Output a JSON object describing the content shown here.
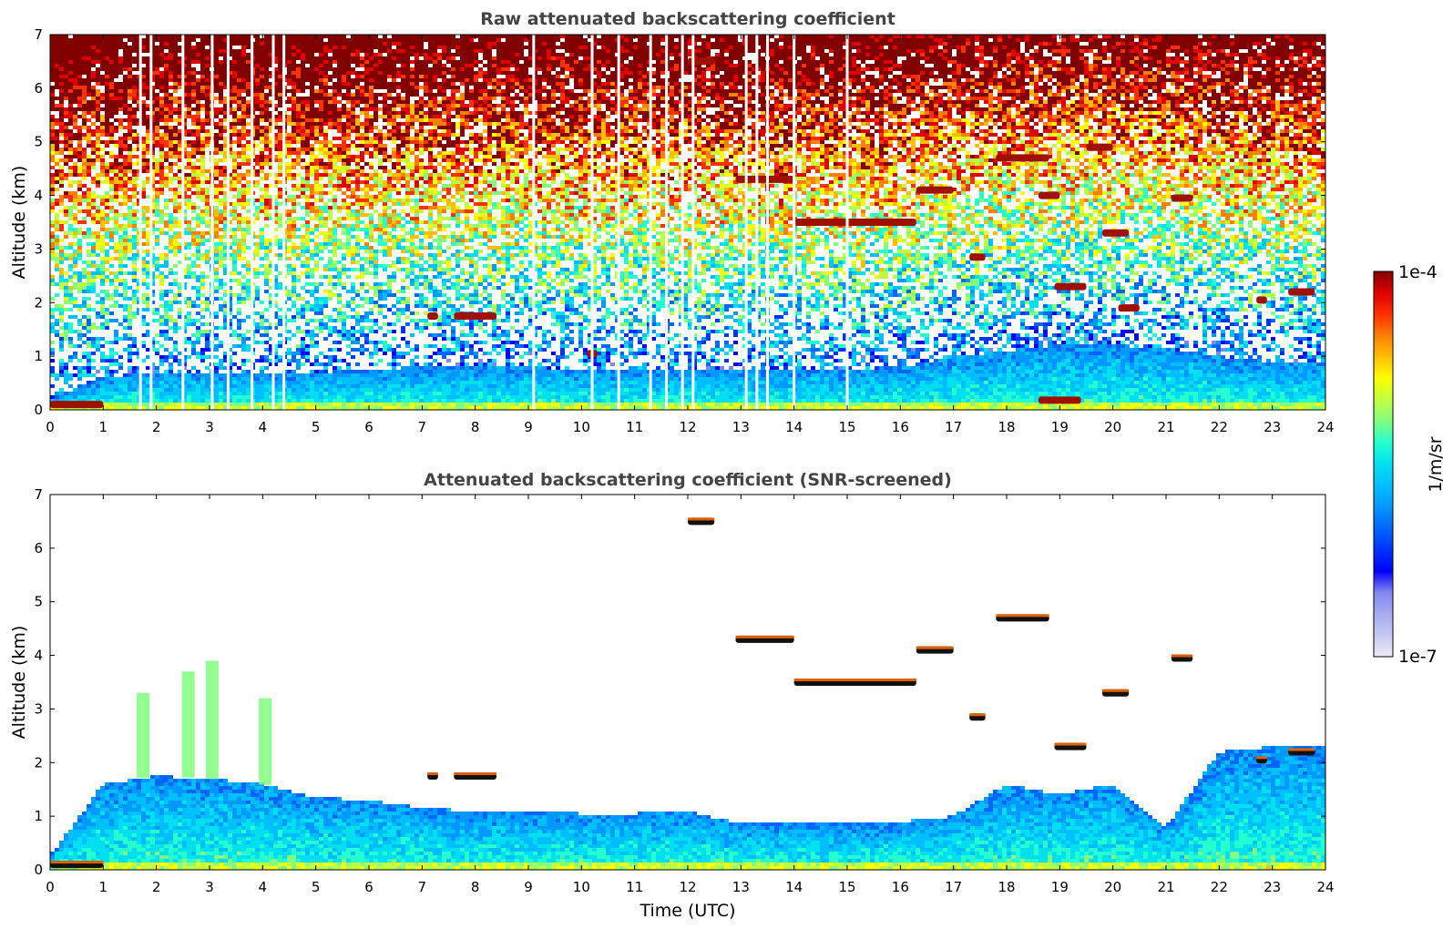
{
  "chart_data": [
    {
      "type": "heatmap",
      "title": "Raw attenuated backscattering coefficient",
      "xlabel": "",
      "ylabel": "Altitude (km)",
      "xlim": [
        0,
        24
      ],
      "ylim": [
        0,
        7
      ],
      "xticks": [
        "0",
        "1",
        "2",
        "3",
        "4",
        "5",
        "6",
        "7",
        "8",
        "9",
        "10",
        "11",
        "12",
        "13",
        "14",
        "15",
        "16",
        "17",
        "18",
        "19",
        "20",
        "21",
        "22",
        "23",
        "24"
      ],
      "yticks": [
        "0",
        "1",
        "2",
        "3",
        "4",
        "5",
        "6",
        "7"
      ],
      "boundary_layer_top_km": [
        0.2,
        0.6,
        0.7,
        0.7,
        0.7,
        0.7,
        0.75,
        0.8,
        0.8,
        0.8,
        0.75,
        0.75,
        0.75,
        0.75,
        0.75,
        0.75,
        0.8,
        1.0,
        1.1,
        1.2,
        1.2,
        1.15,
        1.0,
        0.9,
        0.9
      ],
      "cloud_layers": [
        {
          "x_start": 0.0,
          "x_end": 1.0,
          "alt_km": 0.1
        },
        {
          "x_start": 7.1,
          "x_end": 7.3,
          "alt_km": 1.75
        },
        {
          "x_start": 7.6,
          "x_end": 8.4,
          "alt_km": 1.75
        },
        {
          "x_start": 10.1,
          "x_end": 10.3,
          "alt_km": 1.05
        },
        {
          "x_start": 12.0,
          "x_end": 12.5,
          "alt_km": 6.5
        },
        {
          "x_start": 12.9,
          "x_end": 14.0,
          "alt_km": 4.3
        },
        {
          "x_start": 14.0,
          "x_end": 16.3,
          "alt_km": 3.5
        },
        {
          "x_start": 16.3,
          "x_end": 17.0,
          "alt_km": 4.1
        },
        {
          "x_start": 17.3,
          "x_end": 17.6,
          "alt_km": 2.85
        },
        {
          "x_start": 17.8,
          "x_end": 18.8,
          "alt_km": 4.7
        },
        {
          "x_start": 18.6,
          "x_end": 19.0,
          "alt_km": 4.0
        },
        {
          "x_start": 18.6,
          "x_end": 19.4,
          "alt_km": 0.18
        },
        {
          "x_start": 18.9,
          "x_end": 19.5,
          "alt_km": 2.3
        },
        {
          "x_start": 19.5,
          "x_end": 20.0,
          "alt_km": 4.9
        },
        {
          "x_start": 19.8,
          "x_end": 20.3,
          "alt_km": 3.3
        },
        {
          "x_start": 20.1,
          "x_end": 20.5,
          "alt_km": 1.9
        },
        {
          "x_start": 21.1,
          "x_end": 21.5,
          "alt_km": 3.95
        },
        {
          "x_start": 22.7,
          "x_end": 22.9,
          "alt_km": 2.05
        },
        {
          "x_start": 23.3,
          "x_end": 23.8,
          "alt_km": 2.2
        }
      ],
      "missing_profiles_utc": [
        1.7,
        1.9,
        2.5,
        3.05,
        3.35,
        3.8,
        4.2,
        4.4,
        9.1,
        10.2,
        10.7,
        11.3,
        11.6,
        11.9,
        12.1,
        13.1,
        13.3,
        13.5,
        14.0,
        15.0
      ]
    },
    {
      "type": "heatmap",
      "title": "Attenuated backscattering coefficient (SNR-screened)",
      "xlabel": "Time (UTC)",
      "ylabel": "Altitude (km)",
      "xlim": [
        0,
        24
      ],
      "ylim": [
        0,
        7
      ],
      "xticks": [
        "0",
        "1",
        "2",
        "3",
        "4",
        "5",
        "6",
        "7",
        "8",
        "9",
        "10",
        "11",
        "12",
        "13",
        "14",
        "15",
        "16",
        "17",
        "18",
        "19",
        "20",
        "21",
        "22",
        "23",
        "24"
      ],
      "yticks": [
        "0",
        "1",
        "2",
        "3",
        "4",
        "5",
        "6",
        "7"
      ],
      "boundary_layer_top_km": [
        0.25,
        1.6,
        1.75,
        1.7,
        1.6,
        1.35,
        1.3,
        1.15,
        1.1,
        1.1,
        1.05,
        1.05,
        1.1,
        0.85,
        0.85,
        0.85,
        0.9,
        1.0,
        1.6,
        1.4,
        1.6,
        0.8,
        2.2,
        2.3,
        2.3
      ],
      "cloud_layers": [
        {
          "x_start": 0.0,
          "x_end": 1.0,
          "alt_km": 0.1
        },
        {
          "x_start": 7.1,
          "x_end": 7.3,
          "alt_km": 1.75
        },
        {
          "x_start": 7.6,
          "x_end": 8.4,
          "alt_km": 1.75
        },
        {
          "x_start": 12.0,
          "x_end": 12.5,
          "alt_km": 6.5
        },
        {
          "x_start": 12.9,
          "x_end": 14.0,
          "alt_km": 4.3
        },
        {
          "x_start": 14.0,
          "x_end": 16.3,
          "alt_km": 3.5
        },
        {
          "x_start": 16.3,
          "x_end": 17.0,
          "alt_km": 4.1
        },
        {
          "x_start": 17.3,
          "x_end": 17.6,
          "alt_km": 2.85
        },
        {
          "x_start": 17.8,
          "x_end": 18.8,
          "alt_km": 4.7
        },
        {
          "x_start": 18.9,
          "x_end": 19.5,
          "alt_km": 2.3
        },
        {
          "x_start": 19.8,
          "x_end": 20.3,
          "alt_km": 3.3
        },
        {
          "x_start": 21.1,
          "x_end": 21.5,
          "alt_km": 3.95
        },
        {
          "x_start": 22.7,
          "x_end": 22.9,
          "alt_km": 2.05
        },
        {
          "x_start": 23.3,
          "x_end": 23.8,
          "alt_km": 2.2
        }
      ],
      "aerosol_plumes": [
        {
          "x_center": 1.75,
          "top_km": 3.3
        },
        {
          "x_center": 2.6,
          "top_km": 3.7
        },
        {
          "x_center": 3.05,
          "top_km": 3.9
        },
        {
          "x_center": 4.05,
          "top_km": 3.2
        }
      ]
    }
  ],
  "colorbar": {
    "label": "1/m/sr",
    "max_label": "1e-4",
    "min_label": "1e-7",
    "min": 1e-07,
    "max": 0.0001,
    "scale": "log",
    "colors": [
      "#ececf7",
      "#c5c8f0",
      "#a9aaf0",
      "#8286ef",
      "#0000ff",
      "#0033ff",
      "#0066ff",
      "#0099ff",
      "#00bfff",
      "#00e0f0",
      "#25ffd0",
      "#80ff80",
      "#c0ff40",
      "#ffff00",
      "#ffbf00",
      "#ff8000",
      "#ff3000",
      "#e00000",
      "#800000"
    ]
  }
}
